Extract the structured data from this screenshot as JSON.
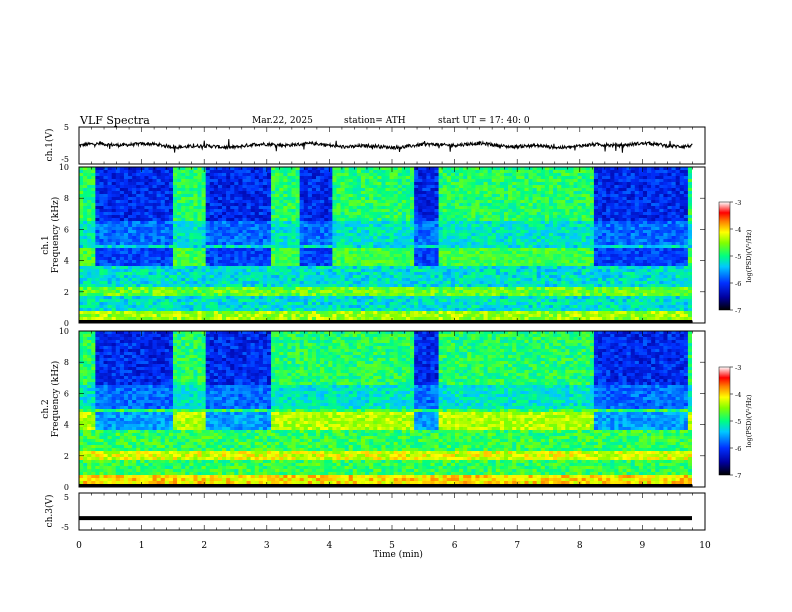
{
  "header": {
    "title": "VLF  Spectra",
    "date": "Mar.22, 2025",
    "station": "station= ATH",
    "start": "start  UT  =   17: 40: 0"
  },
  "chart_data": [
    {
      "type": "line",
      "ylabel": "ch.1(V)",
      "ylim": [
        -5,
        5
      ],
      "yticks": [
        "5",
        "-5"
      ],
      "xlim": [
        0,
        10
      ],
      "description_series": "time series waveform near 0 V"
    },
    {
      "type": "heatmap",
      "ylabel": "ch.1\nFrequency (kHz)",
      "ylabel_top": "ch.1",
      "ylabel_bottom": "Frequency (kHz)",
      "ylim": [
        0,
        10
      ],
      "yticks": [
        "0",
        "2",
        "4",
        "6",
        "8",
        "10"
      ],
      "xlim": [
        0,
        10
      ],
      "colorbar": {
        "label": "log(PSD)(V²/Hz)",
        "range": [
          -7,
          -3
        ],
        "ticks": [
          "-3",
          "-4",
          "-5",
          "-6",
          "-7"
        ]
      },
      "dark_intervals_min": [
        [
          0.25,
          1.5
        ],
        [
          2.0,
          3.05
        ],
        [
          3.55,
          4.05
        ],
        [
          5.35,
          5.75
        ],
        [
          8.25,
          9.75
        ]
      ]
    },
    {
      "type": "heatmap",
      "ylabel_top": "ch.2",
      "ylabel_bottom": "Frequency (kHz)",
      "ylim": [
        0,
        10
      ],
      "yticks": [
        "0",
        "2",
        "4",
        "6",
        "8",
        "10"
      ],
      "xlim": [
        0,
        10
      ],
      "colorbar": {
        "label": "log(PSD)(V²/Hz)",
        "range": [
          -7,
          -3
        ],
        "ticks": [
          "-3",
          "-4",
          "-5",
          "-6",
          "-7"
        ]
      },
      "dark_intervals_min": [
        [
          0.25,
          1.5
        ],
        [
          2.0,
          3.05
        ],
        [
          5.35,
          5.75
        ],
        [
          8.25,
          9.75
        ]
      ]
    },
    {
      "type": "line",
      "ylabel": "ch.3(V)",
      "ylim": [
        -5,
        5
      ],
      "yticks": [
        "5",
        "-5"
      ],
      "xlim": [
        0,
        10
      ],
      "constant_value": -1.8
    }
  ],
  "xaxis": {
    "label": "Time  (min)",
    "ticks": [
      "0",
      "1",
      "2",
      "3",
      "4",
      "5",
      "6",
      "7",
      "8",
      "9",
      "10"
    ]
  }
}
